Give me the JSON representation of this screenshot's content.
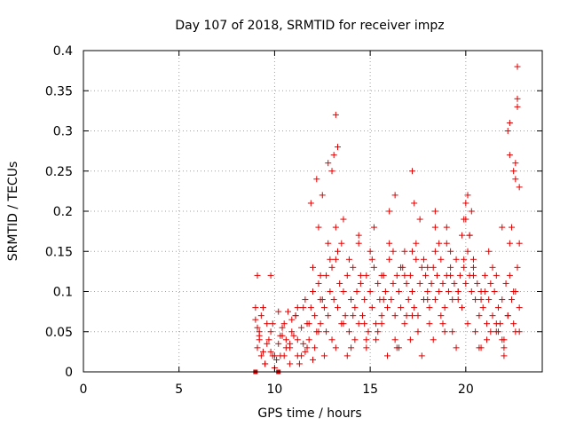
{
  "chart_data": {
    "type": "scatter",
    "title": "Day 107 of 2018, SRMTID for receiver impz",
    "xlabel": "GPS time / hours",
    "ylabel": "SRMTID / TECUs",
    "xlim": [
      0,
      24
    ],
    "ylim": [
      0,
      0.4
    ],
    "x_ticks": [
      0,
      5,
      10,
      15,
      20
    ],
    "x_tick_labels": [
      "0",
      "5",
      "10",
      "15",
      "20"
    ],
    "y_ticks": [
      0,
      0.05,
      0.1,
      0.15,
      0.2,
      0.25,
      0.3,
      0.35,
      0.4
    ],
    "y_tick_labels": [
      "0",
      "0.05",
      "0.1",
      "0.15",
      "0.2",
      "0.25",
      "0.3",
      "0.35",
      "0.4"
    ],
    "grid": true,
    "marker": "+",
    "color": "#e00000",
    "series": [
      {
        "name": "SRMTID",
        "x": [
          9.0,
          9.1,
          9.2,
          9.3,
          9.5,
          9.7,
          9.8,
          9.9,
          10.1,
          10.2,
          10.3,
          10.4,
          10.5,
          10.6,
          10.7,
          10.8,
          10.9,
          11.0,
          11.1,
          11.2,
          11.3,
          11.4,
          11.5,
          11.6,
          11.7,
          11.8,
          11.9,
          12.0,
          12.1,
          12.2,
          12.3,
          12.4,
          12.5,
          12.6,
          12.7,
          12.8,
          12.9,
          13.0,
          13.1,
          13.2,
          13.3,
          13.4,
          13.5,
          13.6,
          13.7,
          13.8,
          13.9,
          14.0,
          14.1,
          14.2,
          14.3,
          14.4,
          14.5,
          14.6,
          14.7,
          14.8,
          14.9,
          15.0,
          15.1,
          15.2,
          15.3,
          15.4,
          15.5,
          15.6,
          15.7,
          15.8,
          15.9,
          16.0,
          16.1,
          16.2,
          16.3,
          16.4,
          16.5,
          16.6,
          16.7,
          16.8,
          16.9,
          17.0,
          17.1,
          17.2,
          17.3,
          17.4,
          17.5,
          17.6,
          17.7,
          17.8,
          17.9,
          18.0,
          18.1,
          18.2,
          18.3,
          18.4,
          18.5,
          18.6,
          18.7,
          18.8,
          18.9,
          19.0,
          19.1,
          19.2,
          19.3,
          19.4,
          19.5,
          19.6,
          19.7,
          19.8,
          19.9,
          20.0,
          20.1,
          20.2,
          20.3,
          20.4,
          20.5,
          20.6,
          20.7,
          20.8,
          20.9,
          21.0,
          21.1,
          21.2,
          21.3,
          21.4,
          21.5,
          21.6,
          21.7,
          21.8,
          21.9,
          22.0,
          22.1,
          22.2,
          22.3,
          22.4,
          22.5,
          22.6,
          22.7,
          22.8,
          9.0,
          9.2,
          9.4,
          9.6,
          9.8,
          10.0,
          10.3,
          10.6,
          10.9,
          11.2,
          11.5,
          11.8,
          12.1,
          12.4,
          12.7,
          13.0,
          13.3,
          13.6,
          13.9,
          14.2,
          14.5,
          14.8,
          15.1,
          15.4,
          15.7,
          16.0,
          16.3,
          16.6,
          16.9,
          17.2,
          17.5,
          17.8,
          18.1,
          18.4,
          18.7,
          19.0,
          19.3,
          19.6,
          19.9,
          20.2,
          20.5,
          20.8,
          21.1,
          21.4,
          21.7,
          22.0,
          22.3,
          22.6,
          9.1,
          9.3,
          9.5,
          9.9,
          10.2,
          10.5,
          10.8,
          11.1,
          11.4,
          11.7,
          12.0,
          12.3,
          12.6,
          12.9,
          13.2,
          13.5,
          13.8,
          14.1,
          14.4,
          14.7,
          15.0,
          15.3,
          15.6,
          15.9,
          16.2,
          16.5,
          16.8,
          17.1,
          17.4,
          17.7,
          18.0,
          18.3,
          18.6,
          18.9,
          19.2,
          19.5,
          19.8,
          20.1,
          20.4,
          20.7,
          21.0,
          21.3,
          21.6,
          21.9,
          22.2,
          22.5,
          22.8,
          9.2,
          9.6,
          10.0,
          10.4,
          10.8,
          11.2,
          11.6,
          12.0,
          12.4,
          12.8,
          13.2,
          13.6,
          14.0,
          14.4,
          14.8,
          15.2,
          15.6,
          16.0,
          16.4,
          16.8,
          17.2,
          17.6,
          18.0,
          18.4,
          18.8,
          19.2,
          19.6,
          20.0,
          20.4,
          20.8,
          21.2,
          21.6,
          22.0,
          22.4,
          22.8,
          9.1,
          9.4,
          9.8,
          11.9,
          12.2,
          12.3,
          13.1,
          13.2,
          13.3,
          12.5,
          12.8,
          13.0,
          16.3,
          17.2,
          17.3,
          18.4,
          19.0,
          19.9,
          20.0,
          20.1,
          20.3,
          22.2,
          22.3,
          22.5,
          22.6,
          22.7,
          22.7,
          22.7,
          22.8,
          22.6,
          22.3,
          21.9,
          20.2
        ],
        "y": [
          0.065,
          0.03,
          0.05,
          0.02,
          0.01,
          0.04,
          0.025,
          0.06,
          0.015,
          0.035,
          0.02,
          0.055,
          0.06,
          0.04,
          0.075,
          0.03,
          0.05,
          0.045,
          0.07,
          0.02,
          0.01,
          0.055,
          0.035,
          0.09,
          0.06,
          0.04,
          0.08,
          0.1,
          0.07,
          0.05,
          0.11,
          0.06,
          0.09,
          0.08,
          0.12,
          0.07,
          0.1,
          0.13,
          0.09,
          0.14,
          0.08,
          0.11,
          0.06,
          0.1,
          0.07,
          0.12,
          0.05,
          0.09,
          0.13,
          0.08,
          0.1,
          0.06,
          0.11,
          0.07,
          0.09,
          0.12,
          0.05,
          0.1,
          0.08,
          0.13,
          0.06,
          0.11,
          0.09,
          0.07,
          0.12,
          0.1,
          0.08,
          0.14,
          0.09,
          0.11,
          0.07,
          0.12,
          0.1,
          0.08,
          0.13,
          0.06,
          0.11,
          0.09,
          0.12,
          0.1,
          0.08,
          0.14,
          0.07,
          0.11,
          0.13,
          0.09,
          0.12,
          0.1,
          0.08,
          0.11,
          0.13,
          0.09,
          0.12,
          0.1,
          0.14,
          0.11,
          0.08,
          0.12,
          0.1,
          0.13,
          0.09,
          0.11,
          0.14,
          0.1,
          0.12,
          0.08,
          0.13,
          0.11,
          0.15,
          0.12,
          0.1,
          0.13,
          0.09,
          0.11,
          0.07,
          0.1,
          0.08,
          0.12,
          0.06,
          0.09,
          0.11,
          0.07,
          0.1,
          0.05,
          0.08,
          0.06,
          0.09,
          0.04,
          0.11,
          0.07,
          0.12,
          0.09,
          0.06,
          0.1,
          0.13,
          0.08,
          0.08,
          0.045,
          0.025,
          0.035,
          0.05,
          0.02,
          0.045,
          0.03,
          0.065,
          0.04,
          0.08,
          0.06,
          0.03,
          0.12,
          0.05,
          0.04,
          0.15,
          0.06,
          0.14,
          0.04,
          0.12,
          0.03,
          0.14,
          0.05,
          0.09,
          0.16,
          0.04,
          0.13,
          0.07,
          0.15,
          0.05,
          0.14,
          0.06,
          0.15,
          0.07,
          0.16,
          0.05,
          0.09,
          0.14,
          0.17,
          0.05,
          0.09,
          0.04,
          0.13,
          0.05,
          0.03,
          0.16,
          0.05,
          0.055,
          0.07,
          0.01,
          0.02,
          0.075,
          0.02,
          0.035,
          0.07,
          0.02,
          0.03,
          0.015,
          0.05,
          0.02,
          0.14,
          0.03,
          0.16,
          0.02,
          0.07,
          0.16,
          0.06,
          0.15,
          0.04,
          0.12,
          0.02,
          0.15,
          0.03,
          0.12,
          0.04,
          0.16,
          0.02,
          0.13,
          0.04,
          0.16,
          0.05,
          0.12,
          0.03,
          0.17,
          0.06,
          0.12,
          0.03,
          0.1,
          0.05,
          0.12,
          0.04,
          0.07,
          0.1,
          0.05,
          0.04,
          0.06,
          0.005,
          0.045,
          0.01,
          0.08,
          0.025,
          0.13,
          0.09,
          0.16,
          0.18,
          0.19,
          0.03,
          0.17,
          0.04,
          0.18,
          0.06,
          0.2,
          0.03,
          0.15,
          0.07,
          0.19,
          0.09,
          0.18,
          0.06,
          0.15,
          0.1,
          0.19,
          0.14,
          0.03,
          0.15,
          0.06,
          0.02,
          0.18,
          0.16,
          0.12,
          0.08,
          0.12,
          0.21,
          0.24,
          0.18,
          0.27,
          0.32,
          0.28,
          0.22,
          0.26,
          0.25,
          0.22,
          0.25,
          0.21,
          0.2,
          0.18,
          0.19,
          0.21,
          0.22,
          0.2,
          0.3,
          0.27,
          0.25,
          0.24,
          0.38,
          0.34,
          0.33,
          0.23,
          0.26,
          0.31,
          0.18,
          0.17
        ]
      }
    ],
    "extra_markers": [
      {
        "x": 9.0,
        "y": 0.0,
        "shape": "square"
      },
      {
        "x": 10.2,
        "y": 0.0,
        "shape": "square"
      }
    ]
  }
}
